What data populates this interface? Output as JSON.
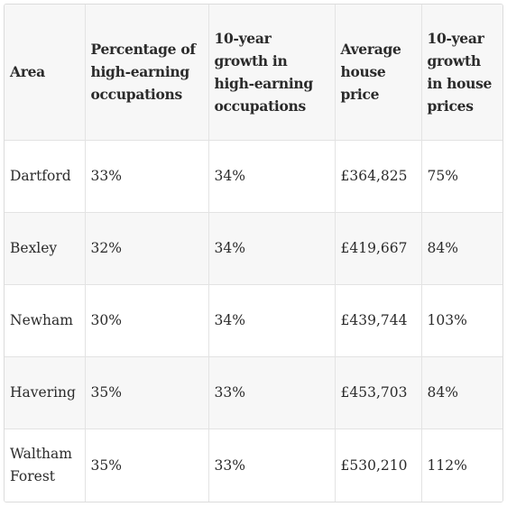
{
  "table": {
    "headers": [
      "Area",
      "Percentage of high-earning occupations",
      "10-year growth in high-earning occupations",
      "Average house price",
      "10-year growth in house prices"
    ],
    "rows": [
      [
        "Dartford",
        "33%",
        "34%",
        "£364,825",
        "75%"
      ],
      [
        "Bexley",
        "32%",
        "34%",
        "£419,667",
        "84%"
      ],
      [
        "Newham",
        "30%",
        "34%",
        "£439,744",
        "103%"
      ],
      [
        "Havering",
        "35%",
        "33%",
        "£453,703",
        "84%"
      ],
      [
        "Waltham Forest",
        "35%",
        "33%",
        "£530,210",
        "112%"
      ]
    ]
  }
}
